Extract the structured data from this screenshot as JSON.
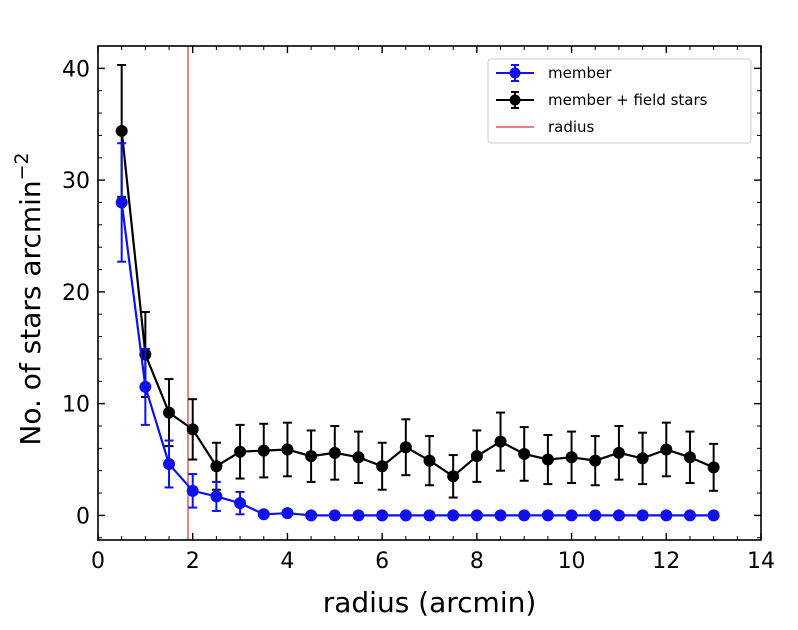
{
  "chart_data": {
    "type": "line",
    "xlabel": "radius (arcmin)",
    "ylabel_main": "No. of stars  arcmin",
    "ylabel_sup": "−2",
    "xlim": [
      0,
      14
    ],
    "ylim": [
      -2.2,
      42
    ],
    "xticks": [
      0,
      2,
      4,
      6,
      8,
      10,
      12,
      14
    ],
    "yticks": [
      0,
      10,
      20,
      30,
      40
    ],
    "legend_position": "top-right",
    "grid": false,
    "vertical_line": {
      "name": "radius",
      "x": 1.9,
      "color": "#f08080"
    },
    "series": [
      {
        "name": "member",
        "color": "#1010ee",
        "x": [
          0.5,
          1.0,
          1.5,
          2.0,
          2.5,
          3.0,
          3.5,
          4.0,
          4.5,
          5.0,
          5.5,
          6.0,
          6.5,
          7.0,
          7.5,
          8.0,
          8.5,
          9.0,
          9.5,
          10.0,
          10.5,
          11.0,
          11.5,
          12.0,
          12.5,
          13.0
        ],
        "y": [
          28.0,
          11.5,
          4.6,
          2.2,
          1.7,
          1.1,
          0.1,
          0.2,
          0.0,
          0.0,
          0.0,
          0.0,
          0.0,
          0.0,
          0.0,
          0.0,
          0.0,
          0.0,
          0.0,
          0.0,
          0.0,
          0.0,
          0.0,
          0.0,
          0.0,
          0.0
        ],
        "yerr": [
          5.3,
          3.4,
          2.1,
          1.5,
          1.3,
          1.0,
          0,
          0,
          0,
          0,
          0,
          0,
          0,
          0,
          0,
          0,
          0,
          0,
          0,
          0,
          0,
          0,
          0,
          0,
          0,
          0
        ]
      },
      {
        "name": "member + field stars",
        "color": "#000000",
        "x": [
          0.5,
          1.0,
          1.5,
          2.0,
          2.5,
          3.0,
          3.5,
          4.0,
          4.5,
          5.0,
          5.5,
          6.0,
          6.5,
          7.0,
          7.5,
          8.0,
          8.5,
          9.0,
          9.5,
          10.0,
          10.5,
          11.0,
          11.5,
          12.0,
          12.5,
          13.0
        ],
        "y": [
          34.4,
          14.4,
          9.2,
          7.7,
          4.4,
          5.7,
          5.8,
          5.9,
          5.3,
          5.6,
          5.2,
          4.4,
          6.1,
          4.9,
          3.5,
          5.3,
          6.6,
          5.5,
          5.0,
          5.2,
          4.9,
          5.6,
          5.1,
          5.9,
          5.2,
          4.3
        ],
        "yerr": [
          5.9,
          3.8,
          3.0,
          2.7,
          2.1,
          2.4,
          2.4,
          2.4,
          2.3,
          2.4,
          2.3,
          2.1,
          2.5,
          2.2,
          1.9,
          2.3,
          2.6,
          2.4,
          2.2,
          2.3,
          2.2,
          2.4,
          2.3,
          2.4,
          2.3,
          2.1
        ]
      }
    ]
  }
}
